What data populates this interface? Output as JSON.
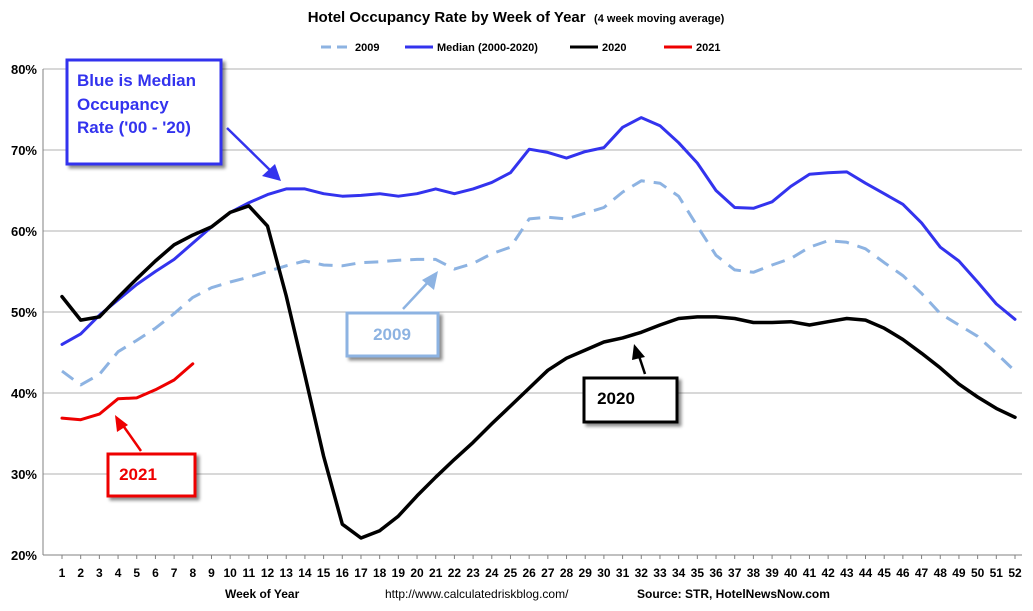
{
  "chart_data": {
    "type": "line",
    "title": "Hotel Occupancy Rate by  Week of Year",
    "subtitle": "(4 week moving average)",
    "xlabel": "Week of Year",
    "ylabel": "",
    "ylim": [
      20,
      80
    ],
    "y_ticks": [
      "20%",
      "30%",
      "40%",
      "50%",
      "60%",
      "70%",
      "80%"
    ],
    "y_tick_values": [
      20,
      30,
      40,
      50,
      60,
      70,
      80
    ],
    "x_categories": [
      "1",
      "2",
      "3",
      "4",
      "5",
      "6",
      "7",
      "8",
      "9",
      "10",
      "11",
      "12",
      "13",
      "14",
      "15",
      "16",
      "17",
      "18",
      "19",
      "20",
      "21",
      "22",
      "23",
      "24",
      "25",
      "26",
      "27",
      "28",
      "29",
      "30",
      "31",
      "32",
      "33",
      "34",
      "35",
      "36",
      "37",
      "38",
      "39",
      "40",
      "41",
      "42",
      "43",
      "44",
      "45",
      "46",
      "47",
      "48",
      "49",
      "50",
      "51",
      "52"
    ],
    "series": [
      {
        "name": "2009",
        "color": "#8db3e2",
        "style": "dashed",
        "values": [
          42.7,
          41.0,
          42.3,
          45.1,
          46.5,
          48.0,
          49.8,
          51.8,
          53.0,
          53.7,
          54.3,
          55.0,
          55.7,
          56.3,
          55.8,
          55.7,
          56.1,
          56.2,
          56.4,
          56.5,
          56.5,
          55.3,
          56.0,
          57.2,
          58.0,
          61.5,
          61.7,
          61.5,
          62.2,
          62.9,
          64.8,
          66.2,
          65.9,
          64.3,
          60.6,
          57.0,
          55.2,
          54.9,
          55.8,
          56.6,
          58.0,
          58.8,
          58.6,
          57.8,
          56.1,
          54.5,
          52.3,
          49.8,
          48.4,
          47.0,
          44.9,
          42.7
        ]
      },
      {
        "name": "Median (2000-2020)",
        "color": "#3333ee",
        "style": "solid",
        "values": [
          46.0,
          47.3,
          49.6,
          51.5,
          53.4,
          55.0,
          56.5,
          58.5,
          60.5,
          62.3,
          63.5,
          64.5,
          65.2,
          65.2,
          64.6,
          64.3,
          64.4,
          64.6,
          64.3,
          64.6,
          65.2,
          64.6,
          65.2,
          66.0,
          67.2,
          70.1,
          69.7,
          69.0,
          69.8,
          70.3,
          72.8,
          74.0,
          73.0,
          70.9,
          68.4,
          65.0,
          62.9,
          62.8,
          63.6,
          65.5,
          67.0,
          67.2,
          67.3,
          65.9,
          64.6,
          63.3,
          61.0,
          58.0,
          56.3,
          53.7,
          51.0,
          49.1
        ]
      },
      {
        "name": "2020",
        "color": "#000000",
        "style": "solid",
        "values": [
          51.9,
          49.0,
          49.4,
          51.8,
          54.1,
          56.3,
          58.3,
          59.5,
          60.5,
          62.3,
          63.1,
          60.6,
          52.0,
          42.2,
          32.2,
          23.8,
          22.1,
          23.0,
          24.8,
          27.3,
          29.6,
          31.8,
          33.9,
          36.2,
          38.4,
          40.6,
          42.8,
          44.3,
          45.3,
          46.3,
          46.8,
          47.5,
          48.4,
          49.2,
          49.4,
          49.4,
          49.2,
          48.7,
          48.7,
          48.8,
          48.4,
          48.8,
          49.2,
          49.0,
          48.0,
          46.6,
          44.9,
          43.1,
          41.1,
          39.5,
          38.1,
          37.0
        ]
      },
      {
        "name": "2021",
        "color": "#ee0000",
        "style": "solid",
        "values": [
          36.9,
          36.7,
          37.4,
          39.3,
          39.4,
          40.4,
          41.6,
          43.6
        ]
      }
    ],
    "legend_position": "top",
    "annotations": {
      "median_note": {
        "lines": [
          "Blue is Median",
          "Occupancy",
          "Rate ('00 - '20)"
        ],
        "color": "#3333ee"
      },
      "label_2009": {
        "text": "2009",
        "color": "#8db3e2"
      },
      "label_2020": {
        "text": "2020",
        "color": "#000000"
      },
      "label_2021": {
        "text": "2021",
        "color": "#ee0000"
      }
    },
    "grid": true
  },
  "footer": {
    "url": "http://www.calculatedriskblog.com/",
    "source": "Source: STR, HotelNewsNow.com"
  }
}
